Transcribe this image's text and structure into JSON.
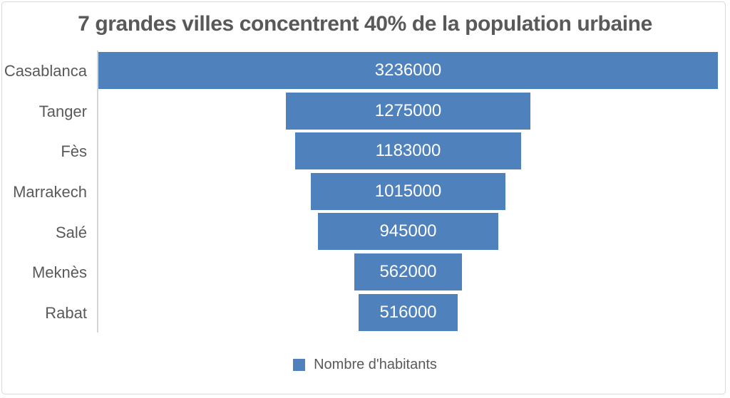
{
  "chart": {
    "title": "7 grandes villes concentrent 40% de la population urbaine",
    "legend": {
      "label": "Nombre d'habitants",
      "position": "bottom"
    },
    "colors": {
      "bar": "#4F81BD",
      "title_text": "#595959",
      "category_text": "#595959",
      "value_text": "#FFFFFF",
      "axis_line": "#D4D4D4",
      "frame_border": "#D9D9D9",
      "background": "#FFFFFF"
    }
  },
  "chart_data": {
    "type": "bar",
    "variant": "horizontal-centered-funnel",
    "title": "7 grandes villes concentrent 40% de la population urbaine",
    "categories": [
      "Casablanca",
      "Tanger",
      "Fès",
      "Marrakech",
      "Salé",
      "Meknès",
      "Rabat"
    ],
    "series": [
      {
        "name": "Nombre d'habitants",
        "values": [
          3236000,
          1275000,
          1183000,
          1015000,
          945000,
          562000,
          516000
        ]
      }
    ],
    "data_labels": {
      "visible": true,
      "position": "inside-center",
      "format": "plain-integer"
    },
    "legend_position": "bottom",
    "axis": {
      "category_axis_side": "left",
      "value_axis_visible": false,
      "gridlines": false
    },
    "value_range_implied": [
      0,
      3236000
    ]
  }
}
